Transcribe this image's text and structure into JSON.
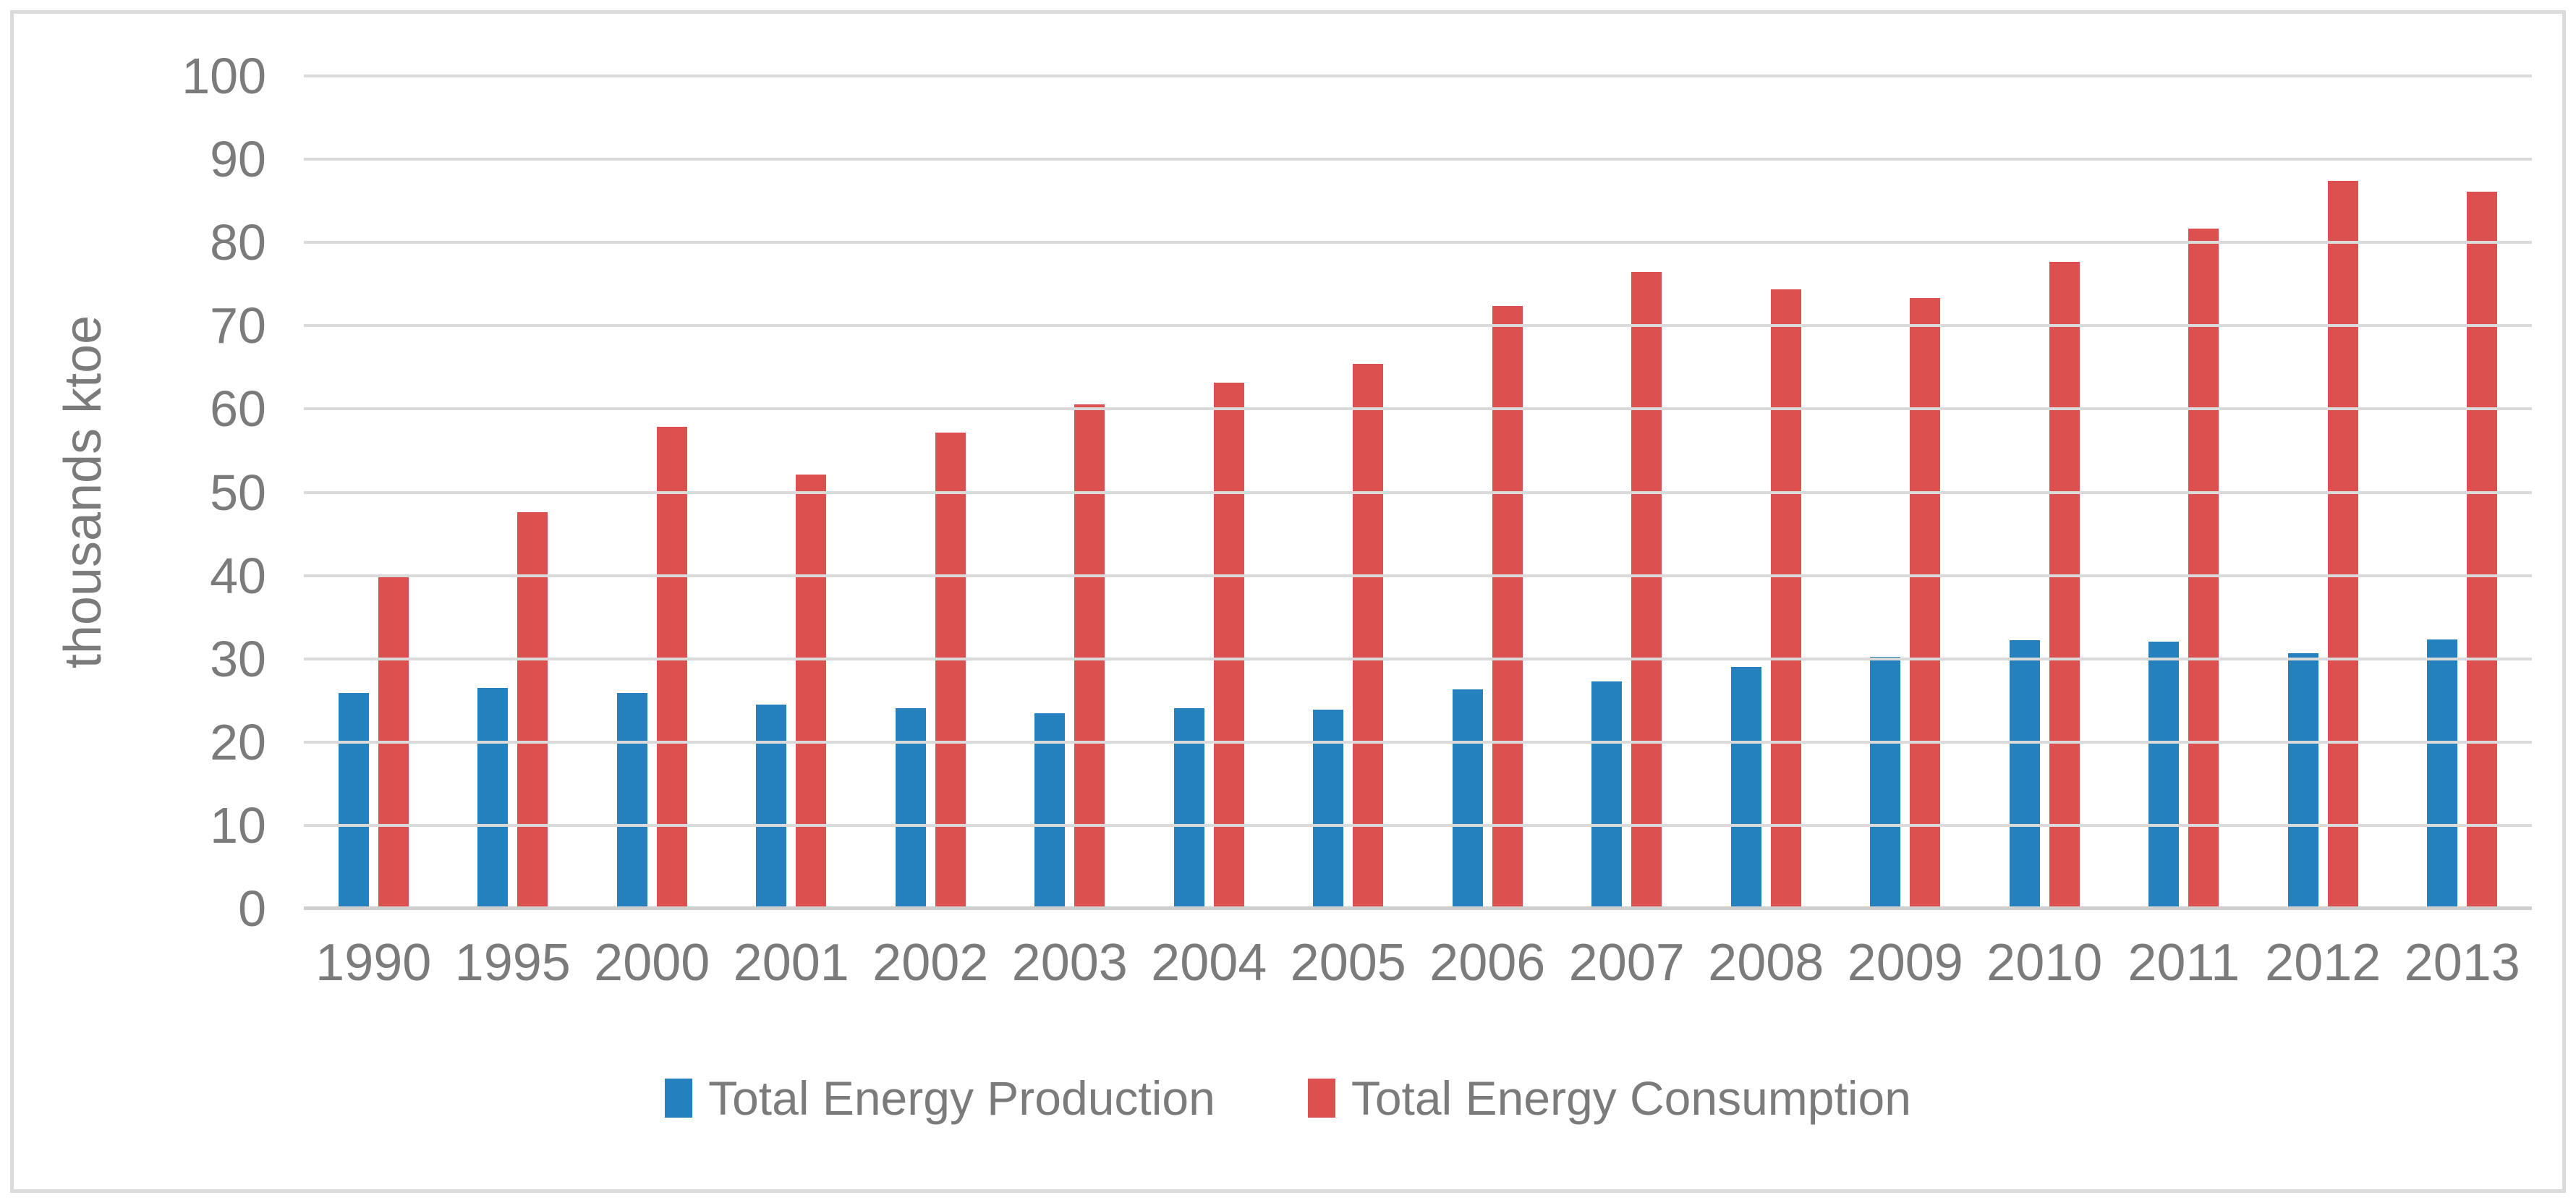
{
  "figure": {
    "background_color": "#FFFFFF",
    "border_color": "#DBDBDB"
  },
  "chart_data": {
    "type": "bar",
    "title": "",
    "xlabel": "",
    "ylabel": "thousands ktoe",
    "ylim": [
      0,
      100
    ],
    "yticks": [
      0,
      10,
      20,
      30,
      40,
      50,
      60,
      70,
      80,
      90,
      100
    ],
    "grid": "horizontal",
    "legend_position": "bottom",
    "categories": [
      "1990",
      "1995",
      "2000",
      "2001",
      "2002",
      "2003",
      "2004",
      "2005",
      "2006",
      "2007",
      "2008",
      "2009",
      "2010",
      "2011",
      "2012",
      "2013"
    ],
    "series": [
      {
        "name": "Total Energy Production",
        "color": "#2481BE",
        "values": [
          25.9,
          26.5,
          25.9,
          24.5,
          24.1,
          23.5,
          24.1,
          23.9,
          26.3,
          27.3,
          29.0,
          30.2,
          32.2,
          32.1,
          30.7,
          32.3
        ]
      },
      {
        "name": "Total Energy Consumption",
        "color": "#DC514F",
        "values": [
          40.1,
          47.6,
          57.9,
          52.1,
          57.2,
          60.6,
          63.2,
          65.4,
          72.4,
          76.5,
          74.4,
          73.3,
          77.7,
          81.7,
          87.4,
          86.1
        ]
      }
    ],
    "colors": {
      "gridline": "#DADADA",
      "axis_line": "#CFCFCF",
      "tick_text": "#7B7B7B"
    }
  }
}
